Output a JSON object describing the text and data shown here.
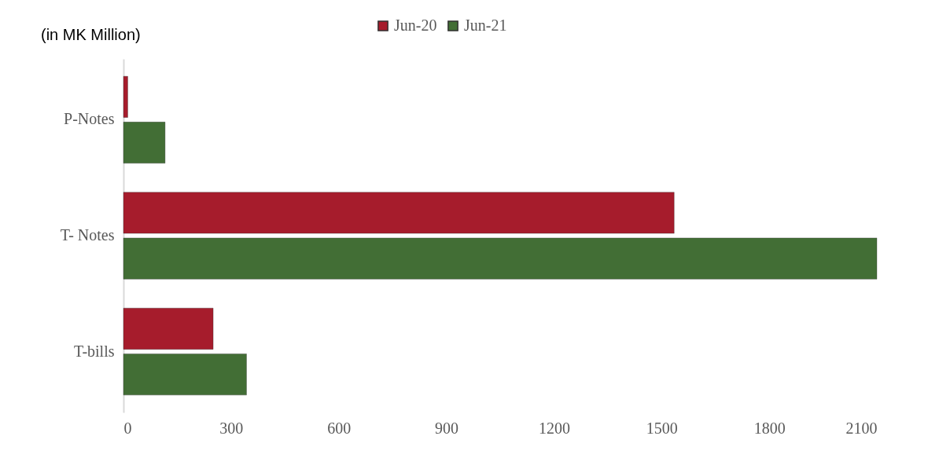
{
  "chart_data": {
    "type": "bar",
    "orientation": "horizontal",
    "title": "(in MK Million)",
    "categories": [
      "P-Notes",
      "T- Notes",
      "T-bills"
    ],
    "series": [
      {
        "name": "Jun-20",
        "color": "#a61c2c",
        "values": [
          12,
          1535,
          250
        ]
      },
      {
        "name": "Jun-21",
        "color": "#426e35",
        "values": [
          116,
          2100,
          343
        ]
      }
    ],
    "xlim": [
      0,
      2100
    ],
    "xticks": [
      0,
      300,
      600,
      900,
      1200,
      1500,
      1800,
      2100
    ],
    "grid": false,
    "legend": "top"
  }
}
